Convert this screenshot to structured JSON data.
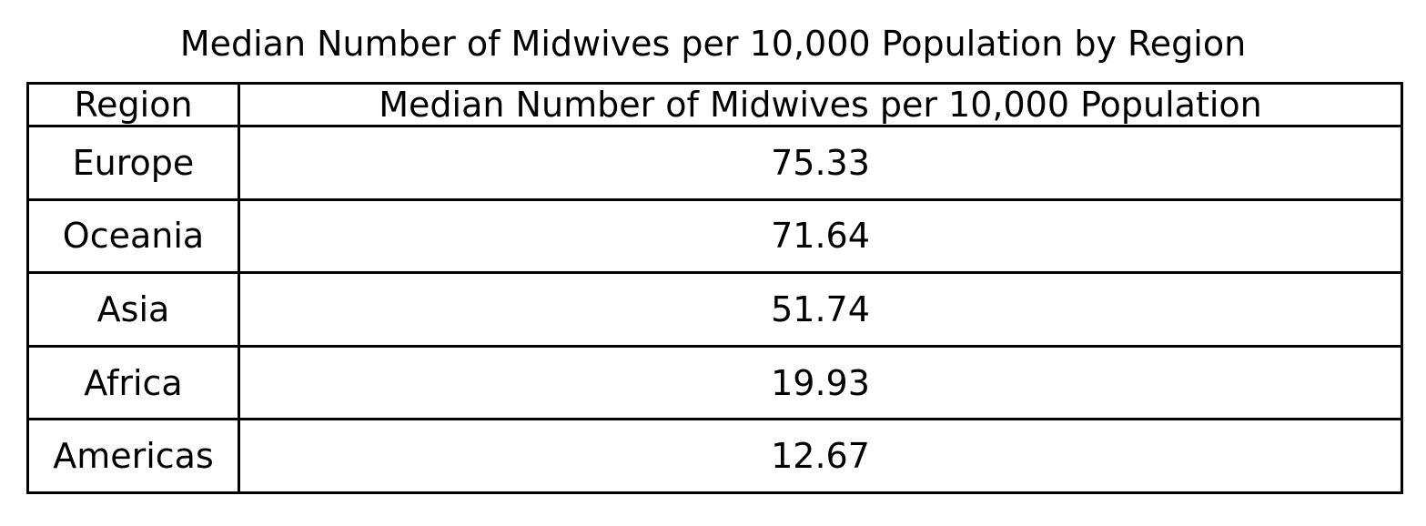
{
  "chart_data": {
    "type": "table",
    "title": "Median Number of Midwives per 10,000 Population by Region",
    "columns": [
      "Region",
      "Median Number of Midwives per 10,000 Population"
    ],
    "rows": [
      {
        "region": "Europe",
        "value": "75.33"
      },
      {
        "region": "Oceania",
        "value": "71.64"
      },
      {
        "region": "Asia",
        "value": "51.74"
      },
      {
        "region": "Africa",
        "value": "19.93"
      },
      {
        "region": "Americas",
        "value": "12.67"
      }
    ]
  }
}
